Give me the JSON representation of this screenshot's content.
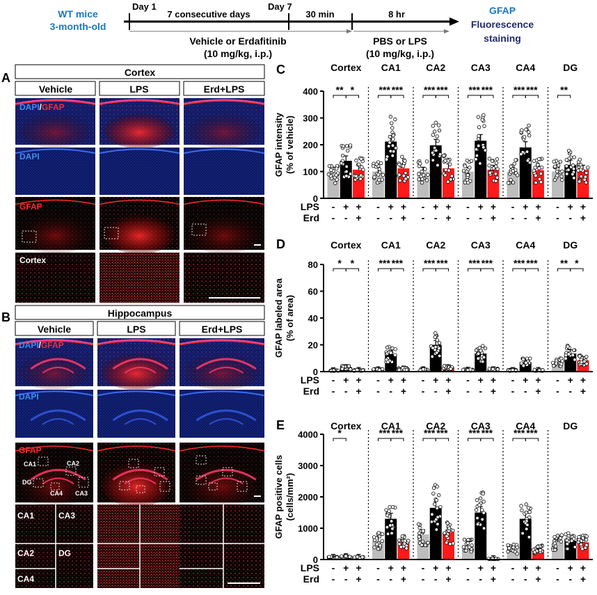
{
  "colors": {
    "blue": "#1a78c2",
    "navy": "#1f2b6b",
    "vehicle": "#bdbdbd",
    "lps": "#000000",
    "erd": "#ff1a1a",
    "red": "#ff2020",
    "dapi": "#1e6fd6"
  },
  "timeline": {
    "subject": [
      "WT mice",
      "3-month-old"
    ],
    "day1": "Day 1",
    "consecutive": "7 consecutive days",
    "day7": "Day 7",
    "min30": "30 min",
    "hr8": "8 hr",
    "treatment": [
      "Vehicle or Erdafitinib",
      "(10 mg/kg, i.p.)"
    ],
    "challenge": [
      "PBS or LPS",
      "(10 mg/kg, i.p.)"
    ],
    "endpoint": [
      "GFAP",
      "Fluorescence",
      "staining"
    ]
  },
  "panelA": {
    "letter": "A",
    "title": "Cortex",
    "columns": [
      "Vehicle",
      "LPS",
      "Erd+LPS"
    ],
    "row_labels": {
      "merge_dapi": "DAPI",
      "merge_sep": "/",
      "merge_gfap": "GFAP",
      "dapi": "DAPI",
      "gfap": "GFAP",
      "zoom": "Cortex"
    }
  },
  "panelB": {
    "letter": "B",
    "title": "Hippocampus",
    "columns": [
      "Vehicle",
      "LPS",
      "Erd+LPS"
    ],
    "row_labels": {
      "merge_dapi": "DAPI",
      "merge_sep": "/",
      "merge_gfap": "GFAP",
      "dapi": "DAPI",
      "gfap": "GFAP"
    },
    "region_labels": [
      "CA1",
      "CA2",
      "DG",
      "CA4",
      "CA3"
    ],
    "zoom_labels": [
      "CA1",
      "CA3",
      "CA2",
      "DG",
      "CA4"
    ]
  },
  "chart_data": [
    {
      "letter": "C",
      "type": "bar",
      "ylabel": [
        "GFAP intensity",
        "(% of vehicle)"
      ],
      "ylim": [
        0,
        400
      ],
      "yticks": [
        0,
        100,
        200,
        300,
        400
      ],
      "regions": [
        "Cortex",
        "CA1",
        "CA2",
        "CA3",
        "CA4",
        "DG"
      ],
      "series": [
        {
          "name": "Vehicle",
          "values": [
            100,
            100,
            100,
            100,
            100,
            100
          ]
        },
        {
          "name": "LPS",
          "values": [
            140,
            212,
            198,
            215,
            190,
            125
          ]
        },
        {
          "name": "Erd+LPS",
          "values": [
            107,
            112,
            112,
            107,
            105,
            107
          ]
        }
      ],
      "significance": [
        [
          "**",
          "*"
        ],
        [
          "***",
          "***"
        ],
        [
          "***",
          "***"
        ],
        [
          "***",
          "***"
        ],
        [
          "***",
          "***"
        ],
        [
          "**",
          ""
        ]
      ],
      "lps_row": [
        "-",
        "+",
        "+"
      ],
      "erd_row": [
        "-",
        "-",
        "+"
      ],
      "row_labels": [
        "LPS",
        "Erd"
      ]
    },
    {
      "letter": "D",
      "type": "bar",
      "ylabel": [
        "GFAP labeled area",
        "(% of area)"
      ],
      "ylim": [
        0,
        80
      ],
      "yticks": [
        0,
        20,
        40,
        60,
        80
      ],
      "regions": [
        "Cortex",
        "CA1",
        "CA2",
        "CA3",
        "CA4",
        "DG"
      ],
      "series": [
        {
          "name": "Vehicle",
          "values": [
            0.8,
            1.5,
            1.5,
            1.2,
            1,
            7
          ]
        },
        {
          "name": "LPS",
          "values": [
            3,
            13,
            20,
            13.5,
            7,
            13.5
          ]
        },
        {
          "name": "Erd+LPS",
          "values": [
            1,
            2,
            3,
            1.5,
            1,
            8.5
          ]
        }
      ],
      "significance": [
        [
          "*",
          "*"
        ],
        [
          "***",
          "***"
        ],
        [
          "***",
          "***"
        ],
        [
          "***",
          "***"
        ],
        [
          "***",
          "***"
        ],
        [
          "**",
          "*"
        ]
      ],
      "lps_row": [
        "-",
        "+",
        "+"
      ],
      "erd_row": [
        "-",
        "-",
        "+"
      ],
      "row_labels": [
        "LPS",
        "Erd"
      ]
    },
    {
      "letter": "E",
      "type": "bar",
      "ylabel": [
        "GFAP positive cells",
        "(cells/mm²)"
      ],
      "ylim": [
        0,
        4000
      ],
      "yticks": [
        0,
        1000,
        2000,
        3000,
        4000
      ],
      "regions": [
        "Cortex",
        "CA1",
        "CA2",
        "CA3",
        "CA4",
        "DG"
      ],
      "series": [
        {
          "name": "Vehicle",
          "values": [
            60,
            600,
            800,
            450,
            330,
            550
          ]
        },
        {
          "name": "LPS",
          "values": [
            80,
            1300,
            1650,
            1500,
            1300,
            600
          ]
        },
        {
          "name": "Erd+LPS",
          "values": [
            60,
            550,
            870,
            20,
            320,
            550
          ]
        }
      ],
      "significance": [
        [
          "*",
          ""
        ],
        [
          "***",
          "***"
        ],
        [
          "***",
          "***"
        ],
        [
          "***",
          "***"
        ],
        [
          "***",
          "***"
        ],
        [
          "",
          ""
        ]
      ],
      "lps_row": [
        "-",
        "+",
        "+"
      ],
      "erd_row": [
        "-",
        "-",
        "+"
      ],
      "row_labels": [
        "LPS",
        "Erd"
      ]
    }
  ]
}
